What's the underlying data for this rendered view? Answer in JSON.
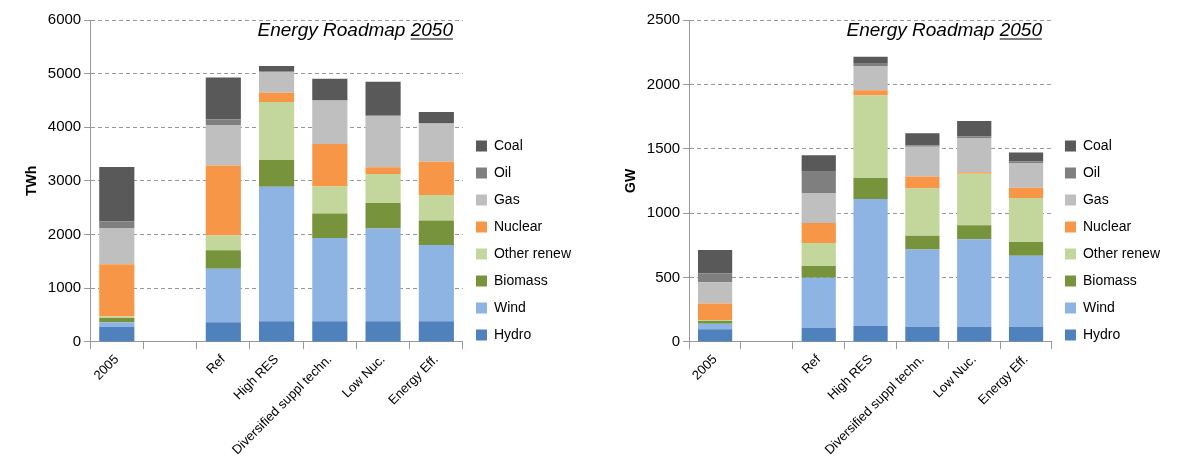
{
  "chart_data": [
    {
      "type": "bar",
      "title": "Energy Roadmap 2050",
      "ylabel": "TWh",
      "stacked": true,
      "grid": "y",
      "legend": "right",
      "categories": [
        "2005",
        null,
        "Ref",
        "High RES",
        "Diversified suppl techn.",
        "Low Nuc.",
        "Energy Eff."
      ],
      "ylim": [
        0,
        6000
      ],
      "yticks": [
        0,
        1000,
        2000,
        3000,
        4000,
        5000,
        6000
      ],
      "series": [
        {
          "name": "Hydro",
          "color": "#4f81bd",
          "values": [
            280,
            null,
            365,
            385,
            385,
            385,
            385
          ]
        },
        {
          "name": "Wind",
          "color": "#8eb4e3",
          "values": [
            85,
            null,
            1000,
            2505,
            1550,
            1730,
            1420
          ]
        },
        {
          "name": "Biomass",
          "color": "#77933c",
          "values": [
            80,
            null,
            345,
            500,
            460,
            475,
            460
          ]
        },
        {
          "name": "Other renew",
          "color": "#c3d69b",
          "values": [
            30,
            null,
            275,
            1080,
            500,
            540,
            475
          ]
        },
        {
          "name": "Nuclear",
          "color": "#f79646",
          "values": [
            975,
            null,
            1305,
            175,
            795,
            125,
            620
          ]
        },
        {
          "name": "Gas",
          "color": "#bfbfbf",
          "values": [
            675,
            null,
            745,
            390,
            810,
            960,
            710
          ]
        },
        {
          "name": "Oil",
          "color": "#7f7f7f",
          "values": [
            125,
            null,
            115,
            0,
            0,
            0,
            0
          ]
        },
        {
          "name": "Coal",
          "color": "#595959",
          "values": [
            1010,
            null,
            780,
            110,
            405,
            635,
            215
          ]
        }
      ]
    },
    {
      "type": "bar",
      "title": "Energy Roadmap 2050",
      "ylabel": "GW",
      "stacked": true,
      "grid": "y",
      "legend": "right",
      "categories": [
        "2005",
        null,
        "Ref",
        "High RES",
        "Diversified suppl techn.",
        "Low Nuc.",
        "Energy Eff."
      ],
      "ylim": [
        0,
        2500
      ],
      "yticks": [
        0,
        500,
        1000,
        1500,
        2000,
        2500
      ],
      "series": [
        {
          "name": "Hydro",
          "color": "#4f81bd",
          "values": [
            98,
            null,
            111,
            125,
            117,
            117,
            117
          ]
        },
        {
          "name": "Wind",
          "color": "#8eb4e3",
          "values": [
            43,
            null,
            388,
            985,
            600,
            681,
            553
          ]
        },
        {
          "name": "Biomass",
          "color": "#77933c",
          "values": [
            22,
            null,
            90,
            163,
            108,
            109,
            106
          ]
        },
        {
          "name": "Other renew",
          "color": "#c3d69b",
          "values": [
            8,
            null,
            179,
            641,
            367,
            399,
            342
          ]
        },
        {
          "name": "Nuclear",
          "color": "#f79646",
          "values": [
            128,
            null,
            155,
            40,
            92,
            11,
            79
          ]
        },
        {
          "name": "Gas",
          "color": "#bfbfbf",
          "values": [
            165,
            null,
            233,
            185,
            231,
            263,
            193
          ]
        },
        {
          "name": "Oil",
          "color": "#7f7f7f",
          "values": [
            68,
            null,
            166,
            22,
            11,
            16,
            13
          ]
        },
        {
          "name": "Coal",
          "color": "#595959",
          "values": [
            182,
            null,
            128,
            54,
            95,
            120,
            68
          ]
        }
      ]
    }
  ]
}
